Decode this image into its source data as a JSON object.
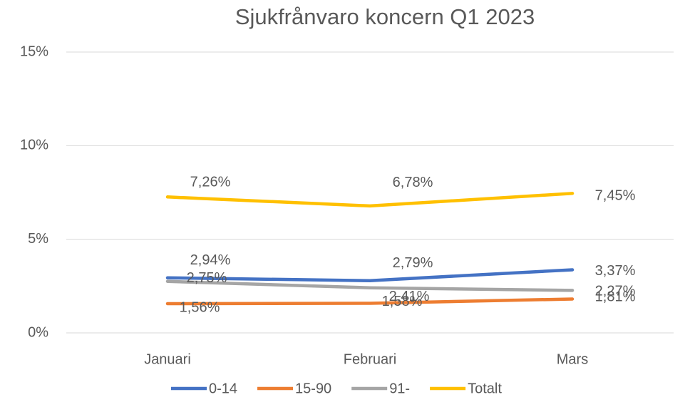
{
  "chart_data": {
    "type": "line",
    "title": "Sjukfrånvaro  koncern Q1 2023",
    "categories": [
      "Januari",
      "Februari",
      "Mars"
    ],
    "series": [
      {
        "name": "0-14",
        "color": "#4472c4",
        "values": [
          2.94,
          2.79,
          3.37
        ],
        "value_labels": [
          "2,94%",
          "2,79%",
          "3,37%"
        ]
      },
      {
        "name": "15-90",
        "color": "#ed7d31",
        "values": [
          1.56,
          1.58,
          1.81
        ],
        "value_labels": [
          "1,56%",
          "1,58%",
          "1,81%"
        ]
      },
      {
        "name": "91-",
        "color": "#a5a5a5",
        "values": [
          2.75,
          2.41,
          2.27
        ],
        "value_labels": [
          "2,75%",
          "2,41%",
          "2,27%"
        ]
      },
      {
        "name": "Totalt",
        "color": "#ffc000",
        "values": [
          7.26,
          6.78,
          7.45
        ],
        "value_labels": [
          "7,26%",
          "6,78%",
          "7,45%"
        ]
      }
    ],
    "ylim": [
      0,
      15
    ],
    "yticks": [
      {
        "value": 0,
        "label": "0%"
      },
      {
        "value": 5,
        "label": "5%"
      },
      {
        "value": 10,
        "label": "10%"
      },
      {
        "value": 15,
        "label": "15%"
      }
    ],
    "grid": true,
    "legend": "bottom"
  }
}
